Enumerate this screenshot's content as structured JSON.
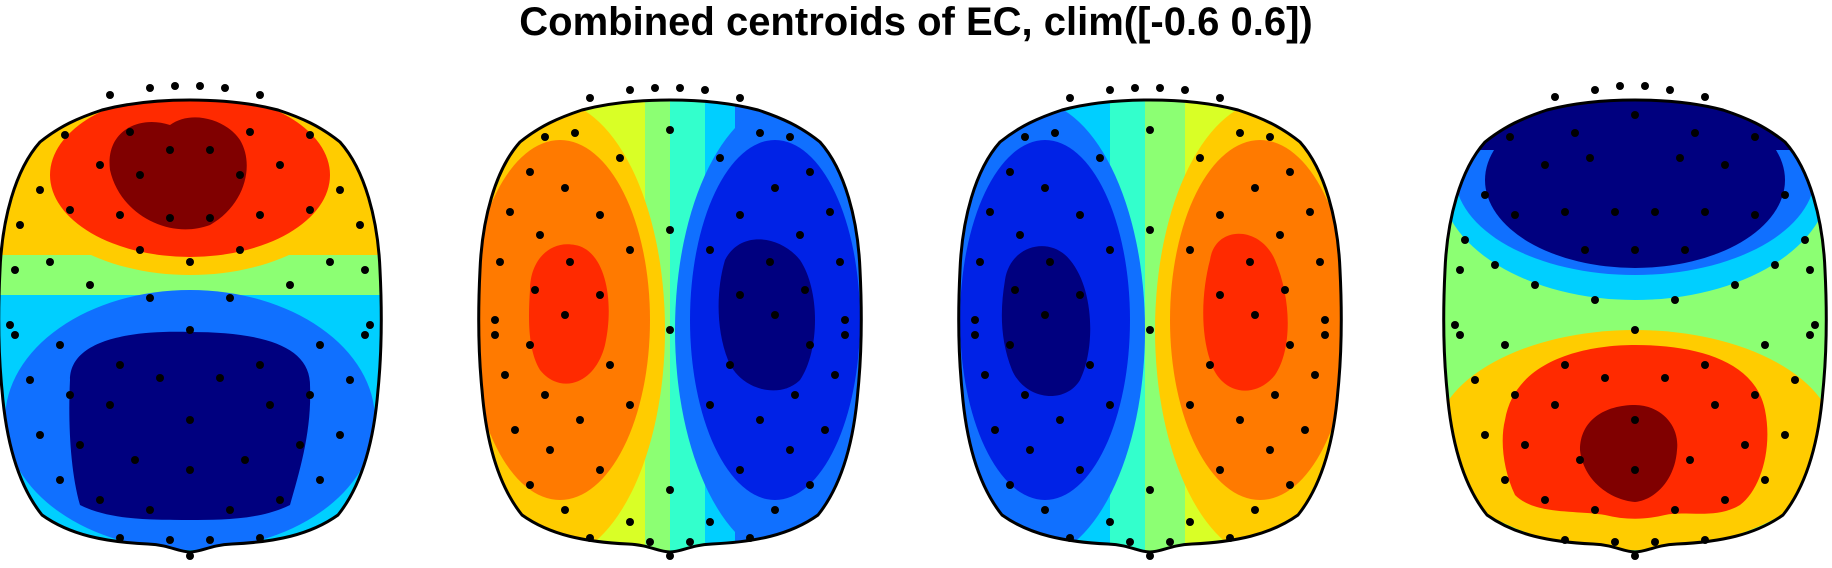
{
  "title": "Combined centroids of EC, clim([-0.6 0.6])",
  "colormap": "jet",
  "clim": [
    -0.6,
    0.6
  ],
  "contour_levels": 8,
  "colors": {
    "level_1": "#00007f",
    "level_2": "#0022e6",
    "level_3": "#1070ff",
    "level_4": "#00cfff",
    "level_5": "#33ffcc",
    "level_6": "#8cff73",
    "level_7": "#d9ff26",
    "level_8": "#ffcc00",
    "level_9": "#ff7a00",
    "level_10": "#ff2a00",
    "level_11": "#800000",
    "outline": "#000000",
    "electrode": "#000000"
  },
  "topomaps": [
    {
      "label": "map-1",
      "pattern": "anterior-positive / posterior-negative"
    },
    {
      "label": "map-2",
      "pattern": "left-positive / right-negative"
    },
    {
      "label": "map-3",
      "pattern": "left-negative / right-positive"
    },
    {
      "label": "map-4",
      "pattern": "anterior-negative / posterior-positive"
    }
  ]
}
